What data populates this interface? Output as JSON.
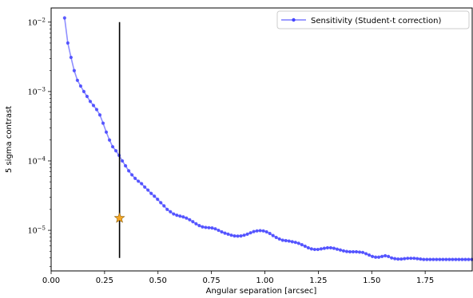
{
  "chart_data": {
    "type": "line",
    "xlabel": "Angular separation [arcsec]",
    "ylabel": "5 sigma contrast",
    "yscale": "log",
    "xlim": [
      0.0,
      1.97
    ],
    "ylim": [
      2.6e-06,
      0.016
    ],
    "grid": false,
    "legend_position": "top-right",
    "xticks": [
      "0.00",
      "0.25",
      "0.50",
      "0.75",
      "1.00",
      "1.25",
      "1.50",
      "1.75"
    ],
    "xtick_values": [
      0,
      0.25,
      0.5,
      0.75,
      1.0,
      1.25,
      1.5,
      1.75
    ],
    "yticks": [
      {
        "value": 1e-05,
        "base": "10",
        "exp": "−5"
      },
      {
        "value": 0.0001,
        "base": "10",
        "exp": "−4"
      },
      {
        "value": 0.001,
        "base": "10",
        "exp": "−3"
      },
      {
        "value": 0.01,
        "base": "10",
        "exp": "−2"
      }
    ],
    "series": [
      {
        "name": "Sensitivity (Student-t correction)",
        "color": "#4444ff",
        "x": [
          0.063,
          0.078,
          0.093,
          0.108,
          0.123,
          0.138,
          0.153,
          0.168,
          0.183,
          0.198,
          0.213,
          0.228,
          0.243,
          0.258,
          0.273,
          0.288,
          0.303,
          0.318,
          0.333,
          0.348,
          0.363,
          0.378,
          0.393,
          0.408,
          0.423,
          0.438,
          0.453,
          0.468,
          0.483,
          0.498,
          0.513,
          0.528,
          0.543,
          0.558,
          0.573,
          0.588,
          0.603,
          0.618,
          0.633,
          0.648,
          0.663,
          0.678,
          0.693,
          0.708,
          0.723,
          0.738,
          0.753,
          0.768,
          0.783,
          0.798,
          0.813,
          0.828,
          0.843,
          0.858,
          0.873,
          0.888,
          0.903,
          0.918,
          0.933,
          0.948,
          0.963,
          0.978,
          0.993,
          1.008,
          1.023,
          1.038,
          1.053,
          1.068,
          1.083,
          1.098,
          1.113,
          1.128,
          1.143,
          1.158,
          1.173,
          1.188,
          1.203,
          1.218,
          1.233,
          1.248,
          1.263,
          1.278,
          1.293,
          1.308,
          1.323,
          1.338,
          1.353,
          1.368,
          1.383,
          1.398,
          1.413,
          1.428,
          1.443,
          1.458,
          1.473,
          1.488,
          1.503,
          1.518,
          1.533,
          1.548,
          1.563,
          1.578,
          1.593,
          1.608,
          1.623,
          1.638,
          1.653,
          1.668,
          1.683,
          1.698,
          1.713,
          1.728,
          1.743,
          1.758,
          1.773,
          1.788,
          1.803,
          1.818,
          1.833,
          1.848,
          1.863,
          1.878,
          1.893,
          1.908,
          1.923,
          1.938,
          1.953,
          1.968
        ],
        "values": [
          0.0115,
          0.005,
          0.0031,
          0.002,
          0.00145,
          0.0012,
          0.001,
          0.00085,
          0.00072,
          0.00063,
          0.00055,
          0.00046,
          0.00035,
          0.00026,
          0.0002,
          0.00016,
          0.00014,
          0.00012,
          0.0001,
          8.5e-05,
          7.2e-05,
          6.3e-05,
          5.6e-05,
          5.1e-05,
          4.7e-05,
          4.2e-05,
          3.8e-05,
          3.4e-05,
          3.1e-05,
          2.8e-05,
          2.5e-05,
          2.25e-05,
          2e-05,
          1.85e-05,
          1.72e-05,
          1.65e-05,
          1.6e-05,
          1.56e-05,
          1.5e-05,
          1.42e-05,
          1.33e-05,
          1.24e-05,
          1.17e-05,
          1.12e-05,
          1.1e-05,
          1.09e-05,
          1.08e-05,
          1.05e-05,
          1e-05,
          9.5e-06,
          9.1e-06,
          8.8e-06,
          8.5e-06,
          8.3e-06,
          8.25e-06,
          8.3e-06,
          8.5e-06,
          8.8e-06,
          9.2e-06,
          9.6e-06,
          9.8e-06,
          9.9e-06,
          9.8e-06,
          9.5e-06,
          9e-06,
          8.4e-06,
          7.9e-06,
          7.5e-06,
          7.2e-06,
          7.1e-06,
          7e-06,
          6.85e-06,
          6.7e-06,
          6.5e-06,
          6.2e-06,
          5.9e-06,
          5.6e-06,
          5.4e-06,
          5.3e-06,
          5.3e-06,
          5.4e-06,
          5.5e-06,
          5.6e-06,
          5.6e-06,
          5.5e-06,
          5.35e-06,
          5.2e-06,
          5.05e-06,
          4.95e-06,
          4.9e-06,
          4.9e-06,
          4.9e-06,
          4.85e-06,
          4.8e-06,
          4.6e-06,
          4.4e-06,
          4.2e-06,
          4.1e-06,
          4.1e-06,
          4.2e-06,
          4.3e-06,
          4.2e-06,
          4e-06,
          3.9e-06,
          3.85e-06,
          3.85e-06,
          3.9e-06,
          3.95e-06,
          3.95e-06,
          3.95e-06,
          3.9e-06,
          3.85e-06,
          3.8e-06,
          3.8e-06,
          3.8e-06,
          3.8e-06,
          3.8e-06,
          3.8e-06,
          3.8e-06,
          3.8e-06,
          3.8e-06,
          3.8e-06,
          3.8e-06,
          3.8e-06,
          3.8e-06,
          3.8e-06,
          3.8e-06,
          3.8e-06
        ]
      }
    ],
    "vertical_line": {
      "x": 0.32,
      "ymin": 4e-06,
      "ymax": 0.01,
      "color": "#000000"
    },
    "marker_point": {
      "x": 0.32,
      "y": 1.5e-05,
      "color": "#f5a623",
      "shape": "star"
    }
  }
}
